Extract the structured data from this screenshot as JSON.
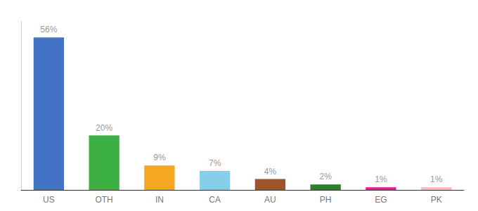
{
  "chart_data": {
    "type": "bar",
    "categories": [
      "US",
      "OTH",
      "IN",
      "CA",
      "AU",
      "PH",
      "EG",
      "PK"
    ],
    "values": [
      56,
      20,
      9,
      7,
      4,
      2,
      1,
      1
    ],
    "value_labels": [
      "56%",
      "20%",
      "9%",
      "7%",
      "4%",
      "2%",
      "1%",
      "1%"
    ],
    "colors": [
      "#4472C4",
      "#3CB043",
      "#F5A623",
      "#87CEEB",
      "#A0522D",
      "#2E7D32",
      "#E91E8C",
      "#FFB6C1"
    ],
    "data_labels": true,
    "ylim": [
      0,
      62
    ],
    "tick_labels": "x",
    "grid": false
  }
}
